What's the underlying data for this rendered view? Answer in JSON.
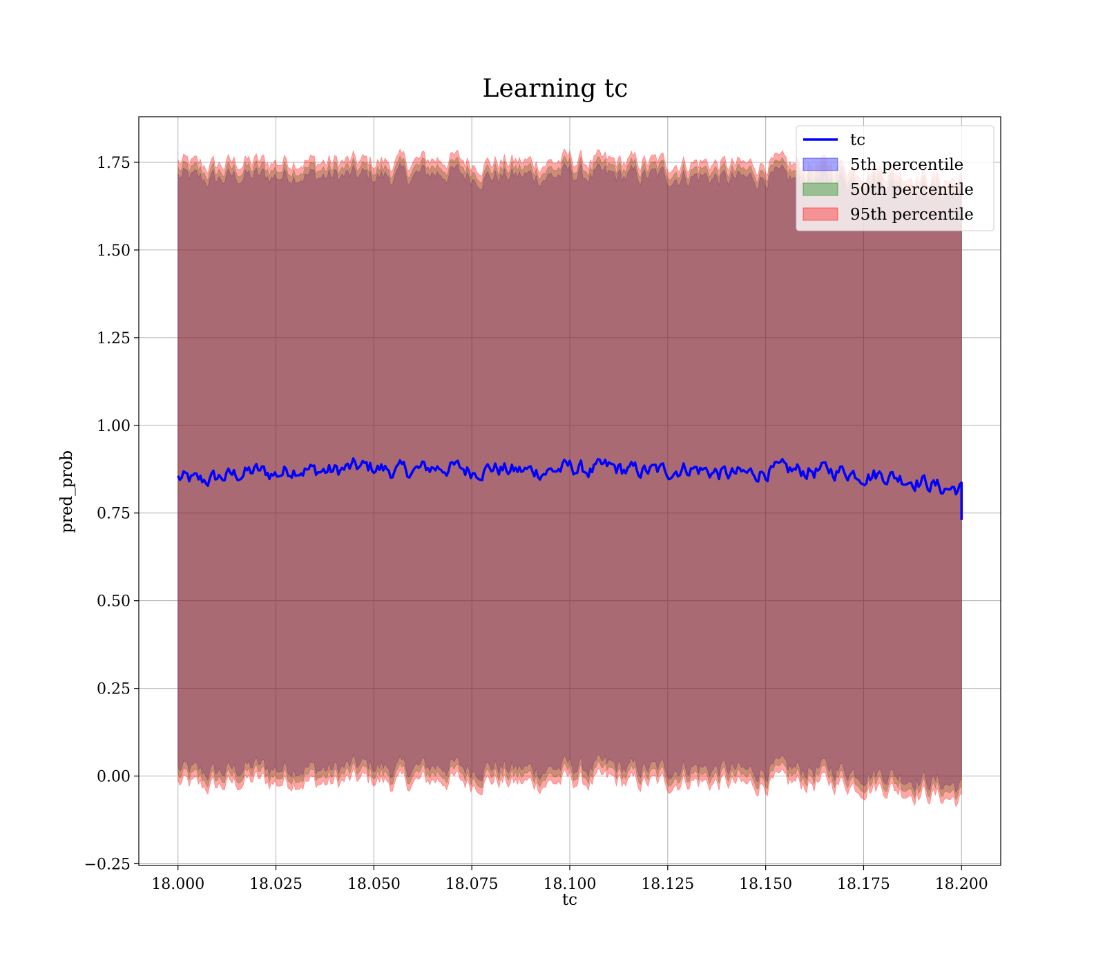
{
  "chart_data": {
    "type": "area",
    "title": "Learning tc",
    "xlabel": "tc",
    "ylabel": "pred_prob",
    "xlim": [
      17.99,
      18.21
    ],
    "ylim": [
      -0.255,
      1.88
    ],
    "x_ticks": [
      "18.000",
      "18.025",
      "18.050",
      "18.075",
      "18.100",
      "18.125",
      "18.150",
      "18.175",
      "18.200"
    ],
    "x_tick_values": [
      18.0,
      18.025,
      18.05,
      18.075,
      18.1,
      18.125,
      18.15,
      18.175,
      18.2
    ],
    "y_ticks": [
      "−0.25",
      "0.00",
      "0.25",
      "0.50",
      "0.75",
      "1.00",
      "1.25",
      "1.50",
      "1.75"
    ],
    "y_tick_values": [
      -0.25,
      0.0,
      0.25,
      0.5,
      0.75,
      1.0,
      1.25,
      1.5,
      1.75
    ],
    "grid": true,
    "legend_position": "top-right",
    "x_range": [
      18.0,
      18.2
    ],
    "series": [
      {
        "name": "tc",
        "kind": "line",
        "color": "#0000ff",
        "x": [
          18.0,
          18.005,
          18.01,
          18.015,
          18.02,
          18.025,
          18.03,
          18.035,
          18.04,
          18.045,
          18.05,
          18.055,
          18.06,
          18.065,
          18.07,
          18.075,
          18.08,
          18.085,
          18.09,
          18.095,
          18.1,
          18.105,
          18.11,
          18.115,
          18.12,
          18.125,
          18.13,
          18.135,
          18.14,
          18.145,
          18.15,
          18.155,
          18.16,
          18.165,
          18.17,
          18.175,
          18.18,
          18.185,
          18.19,
          18.195,
          18.2
        ],
        "values": [
          0.85,
          0.84,
          0.85,
          0.86,
          0.87,
          0.86,
          0.88,
          0.87,
          0.87,
          0.88,
          0.88,
          0.87,
          0.87,
          0.88,
          0.88,
          0.87,
          0.88,
          0.87,
          0.87,
          0.87,
          0.88,
          0.87,
          0.88,
          0.87,
          0.87,
          0.87,
          0.88,
          0.87,
          0.86,
          0.86,
          0.87,
          0.87,
          0.87,
          0.87,
          0.87,
          0.86,
          0.86,
          0.85,
          0.84,
          0.82,
          0.82
        ]
      },
      {
        "name": "5th percentile",
        "kind": "band",
        "color": "#0000ff",
        "upper": [
          1.71,
          1.7,
          1.7,
          1.71,
          1.71,
          1.71,
          1.72,
          1.71,
          1.71,
          1.71,
          1.71,
          1.71,
          1.71,
          1.72,
          1.72,
          1.71,
          1.71,
          1.71,
          1.71,
          1.71,
          1.72,
          1.71,
          1.71,
          1.71,
          1.71,
          1.71,
          1.71,
          1.71,
          1.7,
          1.7,
          1.71,
          1.7,
          1.7,
          1.7,
          1.7,
          1.69,
          1.69,
          1.68,
          1.67,
          1.66,
          1.66
        ],
        "lower": [
          0.02,
          0.01,
          0.01,
          0.02,
          0.03,
          0.02,
          0.03,
          0.02,
          0.02,
          0.03,
          0.03,
          0.02,
          0.02,
          0.03,
          0.03,
          0.02,
          0.03,
          0.02,
          0.02,
          0.02,
          0.03,
          0.02,
          0.03,
          0.02,
          0.02,
          0.02,
          0.03,
          0.02,
          0.02,
          0.01,
          0.02,
          0.02,
          0.02,
          0.02,
          0.02,
          0.01,
          0.01,
          0.0,
          -0.01,
          -0.02,
          -0.03
        ]
      },
      {
        "name": "50th percentile",
        "kind": "band",
        "color": "#008000",
        "upper": [
          1.73,
          1.72,
          1.72,
          1.73,
          1.73,
          1.73,
          1.74,
          1.73,
          1.73,
          1.73,
          1.73,
          1.73,
          1.73,
          1.74,
          1.74,
          1.73,
          1.73,
          1.73,
          1.73,
          1.73,
          1.74,
          1.73,
          1.73,
          1.73,
          1.73,
          1.73,
          1.73,
          1.73,
          1.72,
          1.72,
          1.73,
          1.72,
          1.72,
          1.72,
          1.72,
          1.71,
          1.71,
          1.7,
          1.69,
          1.68,
          1.68
        ],
        "lower": [
          0.0,
          -0.01,
          -0.01,
          0.0,
          0.01,
          0.0,
          0.01,
          0.0,
          0.0,
          0.01,
          0.01,
          0.0,
          0.0,
          0.01,
          0.01,
          0.0,
          0.01,
          0.0,
          0.0,
          0.0,
          0.01,
          0.0,
          0.01,
          0.0,
          0.0,
          0.0,
          0.01,
          0.0,
          0.0,
          -0.01,
          0.0,
          0.0,
          0.0,
          0.0,
          0.0,
          -0.01,
          -0.01,
          -0.02,
          -0.03,
          -0.04,
          -0.05
        ]
      },
      {
        "name": "95th percentile",
        "kind": "band",
        "color": "#ff0000",
        "upper": [
          1.75,
          1.74,
          1.74,
          1.75,
          1.75,
          1.75,
          1.76,
          1.75,
          1.75,
          1.75,
          1.75,
          1.75,
          1.75,
          1.76,
          1.76,
          1.75,
          1.75,
          1.75,
          1.75,
          1.75,
          1.76,
          1.75,
          1.75,
          1.75,
          1.75,
          1.75,
          1.75,
          1.75,
          1.74,
          1.74,
          1.75,
          1.74,
          1.74,
          1.74,
          1.74,
          1.73,
          1.73,
          1.72,
          1.71,
          1.7,
          1.7
        ],
        "lower": [
          -0.02,
          -0.03,
          -0.03,
          -0.02,
          -0.01,
          -0.02,
          -0.01,
          -0.02,
          -0.02,
          -0.01,
          -0.01,
          -0.02,
          -0.02,
          -0.01,
          -0.01,
          -0.02,
          -0.01,
          -0.02,
          -0.02,
          -0.02,
          -0.01,
          -0.02,
          -0.01,
          -0.02,
          -0.02,
          -0.02,
          -0.01,
          -0.02,
          -0.02,
          -0.03,
          -0.02,
          -0.02,
          -0.02,
          -0.02,
          -0.02,
          -0.03,
          -0.03,
          -0.04,
          -0.05,
          -0.06,
          -0.07
        ]
      }
    ]
  }
}
